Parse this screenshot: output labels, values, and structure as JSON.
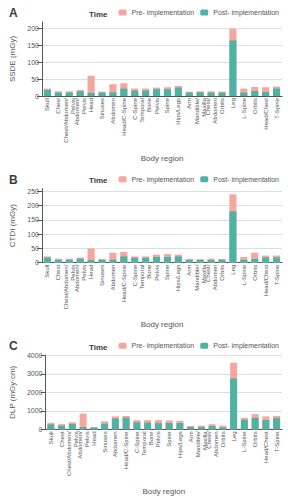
{
  "chart_data": [
    {
      "type": "bar",
      "title": "A",
      "xlabel": "Body region",
      "ylabel": "SSDE (mGy)",
      "categories": [
        "Skull",
        "Chest",
        "Chest/Abdomen/\nPelvis",
        "Abdomen/\nPelvis",
        "Head",
        "Sinuses",
        "Abdomen",
        "Head/C-Spine",
        "C-Spine",
        "Temporal\nBone",
        "Pelvis",
        "Spine",
        "Hips/Legs",
        "Arm",
        "Mandible/\nMaxilla",
        "Chest/\nAbdomen",
        "Orbits",
        "Leg",
        "L-Spine",
        "Orbits",
        "Head/Chest",
        "T-Spine"
      ],
      "series": [
        {
          "name": "Pre- implementation",
          "color": "#f4a79d",
          "values": [
            22,
            14,
            14,
            18,
            60,
            13,
            35,
            38,
            22,
            22,
            25,
            26,
            30,
            13,
            14,
            14,
            13,
            200,
            22,
            27,
            26,
            28
          ]
        },
        {
          "name": "Post- implementation",
          "color": "#4db3a4",
          "values": [
            18,
            10,
            10,
            14,
            9,
            10,
            11,
            22,
            16,
            16,
            20,
            20,
            25,
            10,
            11,
            10,
            10,
            165,
            10,
            15,
            12,
            22
          ]
        }
      ],
      "ylim": [
        0,
        220
      ],
      "yticks": [
        0,
        50,
        100,
        150,
        200
      ],
      "grid": true,
      "legend": "upper right",
      "legend_title": "Time"
    },
    {
      "type": "bar",
      "title": "B",
      "xlabel": "Body region",
      "ylabel": "CTDI (mGy)",
      "categories": [
        "Skull",
        "Chest",
        "Chest/Abdomen/\nPelvis",
        "Abdomen/\nPelvis",
        "Head",
        "Sinuses",
        "Abdomen",
        "Head/C-Spine",
        "C-Spine",
        "Temporal\nBone",
        "Pelvis",
        "Spine",
        "Hips/Legs",
        "Arm",
        "Mandible/\nMaxilla",
        "Chest/\nAbdomen",
        "Orbits",
        "Leg",
        "L-Spine",
        "Orbits",
        "Head/Chest",
        "T-Spine"
      ],
      "series": [
        {
          "name": "Pre- implementation",
          "color": "#f4a79d",
          "values": [
            22,
            14,
            14,
            18,
            50,
            13,
            35,
            38,
            22,
            22,
            28,
            30,
            28,
            13,
            12,
            14,
            13,
            240,
            20,
            35,
            25,
            25
          ]
        },
        {
          "name": "Post- implementation",
          "color": "#4db3a4",
          "values": [
            18,
            10,
            10,
            14,
            9,
            10,
            10,
            22,
            17,
            17,
            20,
            20,
            22,
            10,
            10,
            9,
            10,
            180,
            10,
            13,
            18,
            18
          ]
        }
      ],
      "ylim": [
        0,
        260
      ],
      "yticks": [
        0,
        50,
        100,
        150,
        200,
        250
      ],
      "grid": true,
      "legend": "upper right",
      "legend_title": "Time"
    },
    {
      "type": "bar",
      "title": "C",
      "xlabel": "Body region",
      "ylabel": "DLP (mGy·cm)",
      "categories": [
        "Skull",
        "Chest",
        "Chest/Abdomen/\nPelvis",
        "Abdomen/\nPelvis",
        "Head",
        "Sinuses",
        "Abdomen",
        "Head/C-Spine",
        "C-Spine",
        "Temporal\nBone",
        "Pelvis",
        "Spine",
        "Hips/Legs",
        "Arm",
        "Mandible/\nMaxilla",
        "Chest/\nAbdomen",
        "Orbits",
        "Leg",
        "L-Spine",
        "Orbits",
        "Head/Chest",
        "T-Spine"
      ],
      "series": [
        {
          "name": "Pre- implementation",
          "color": "#f4a79d",
          "values": [
            350,
            280,
            380,
            850,
            120,
            430,
            700,
            720,
            500,
            500,
            500,
            480,
            460,
            180,
            200,
            280,
            200,
            3600,
            620,
            820,
            700,
            720
          ]
        },
        {
          "name": "Post- implementation",
          "color": "#4db3a4",
          "values": [
            270,
            200,
            290,
            120,
            95,
            300,
            580,
            620,
            380,
            360,
            330,
            340,
            340,
            130,
            120,
            180,
            100,
            2750,
            520,
            620,
            500,
            600
          ]
        }
      ],
      "ylim": [
        0,
        4000
      ],
      "yticks": [
        0,
        1000,
        2000,
        3000,
        4000
      ],
      "grid": true,
      "legend": "upper right",
      "legend_title": "Time"
    }
  ]
}
